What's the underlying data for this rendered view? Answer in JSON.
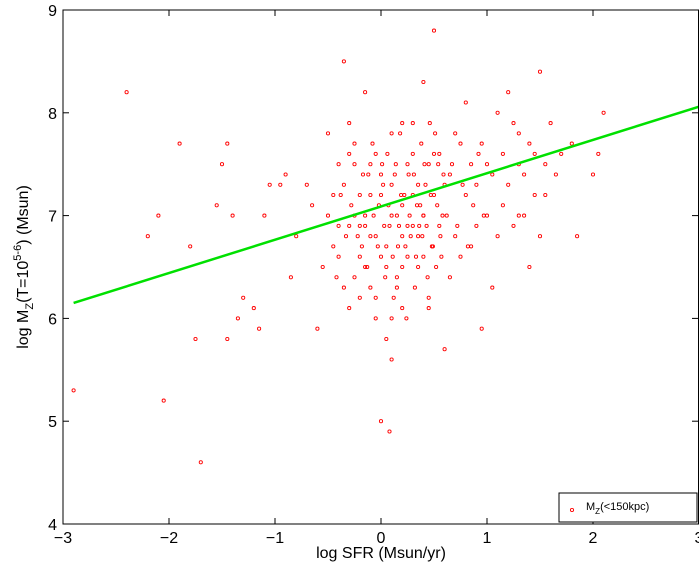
{
  "chart_data": {
    "type": "scatter",
    "title": "",
    "xlabel": "log SFR (Msun/yr)",
    "ylabel": "log M_Z(T=10^{5-6}) (Msun)",
    "xlim": [
      -3,
      3
    ],
    "ylim": [
      4,
      9
    ],
    "xticks": [
      -3,
      -2,
      -1,
      0,
      1,
      2,
      3
    ],
    "yticks": [
      4,
      5,
      6,
      7,
      8,
      9
    ],
    "xtick_labels": [
      "−3",
      "−2",
      "−1",
      "0",
      "1",
      "2",
      "3"
    ],
    "ytick_labels": [
      "4",
      "5",
      "6",
      "7",
      "8",
      "9"
    ],
    "grid": false,
    "legend_position": "bottom-right",
    "series": [
      {
        "name": "M_Z(<150kpc)",
        "color": "#ff0000",
        "marker": "open-circle",
        "points": [
          [
            -2.9,
            5.3
          ],
          [
            -2.4,
            8.2
          ],
          [
            -2.2,
            6.8
          ],
          [
            -2.1,
            7.0
          ],
          [
            -2.05,
            5.2
          ],
          [
            -1.9,
            7.7
          ],
          [
            -1.8,
            6.7
          ],
          [
            -1.75,
            5.8
          ],
          [
            -1.7,
            4.6
          ],
          [
            -1.55,
            7.1
          ],
          [
            -1.5,
            7.5
          ],
          [
            -1.45,
            5.8
          ],
          [
            -1.45,
            7.7
          ],
          [
            -1.4,
            7.0
          ],
          [
            -1.35,
            6.0
          ],
          [
            -1.3,
            6.2
          ],
          [
            -1.2,
            6.1
          ],
          [
            -1.15,
            5.9
          ],
          [
            -1.1,
            7.0
          ],
          [
            -1.05,
            7.3
          ],
          [
            -0.95,
            7.3
          ],
          [
            -0.9,
            7.4
          ],
          [
            -0.85,
            6.4
          ],
          [
            -0.8,
            6.8
          ],
          [
            -0.7,
            7.3
          ],
          [
            -0.65,
            7.1
          ],
          [
            -0.6,
            5.9
          ],
          [
            -0.55,
            6.5
          ],
          [
            -0.5,
            7.8
          ],
          [
            -0.45,
            7.2
          ],
          [
            -0.4,
            6.9
          ],
          [
            -0.35,
            8.5
          ],
          [
            -0.3,
            7.6
          ],
          [
            -0.25,
            7.0
          ],
          [
            -0.2,
            6.6
          ],
          [
            -0.15,
            8.2
          ],
          [
            -0.1,
            7.5
          ],
          [
            -0.05,
            6.2
          ],
          [
            0.0,
            5.0
          ],
          [
            0.05,
            5.8
          ],
          [
            0.08,
            4.9
          ],
          [
            0.1,
            5.6
          ],
          [
            0.15,
            6.3
          ],
          [
            0.2,
            7.9
          ],
          [
            0.25,
            6.9
          ],
          [
            0.3,
            7.2
          ],
          [
            0.35,
            6.5
          ],
          [
            0.4,
            8.3
          ],
          [
            0.45,
            6.1
          ],
          [
            0.5,
            8.8
          ],
          [
            0.55,
            7.6
          ],
          [
            0.6,
            5.7
          ],
          [
            0.65,
            7.4
          ],
          [
            0.7,
            6.8
          ],
          [
            0.75,
            7.7
          ],
          [
            0.8,
            8.1
          ],
          [
            0.85,
            6.7
          ],
          [
            0.9,
            7.3
          ],
          [
            0.95,
            5.9
          ],
          [
            1.0,
            7.5
          ],
          [
            1.05,
            6.3
          ],
          [
            1.1,
            8.0
          ],
          [
            1.15,
            7.1
          ],
          [
            1.2,
            8.2
          ],
          [
            1.25,
            6.9
          ],
          [
            1.3,
            7.8
          ],
          [
            1.35,
            7.4
          ],
          [
            1.4,
            6.5
          ],
          [
            1.45,
            7.6
          ],
          [
            1.5,
            8.4
          ],
          [
            1.55,
            7.2
          ],
          [
            1.6,
            7.9
          ],
          [
            1.65,
            7.4
          ],
          [
            1.7,
            7.6
          ],
          [
            1.8,
            7.7
          ],
          [
            1.85,
            6.8
          ],
          [
            2.0,
            7.4
          ],
          [
            2.05,
            7.6
          ],
          [
            2.1,
            8.0
          ],
          [
            1.3,
            7.0
          ],
          [
            -0.3,
            7.9
          ],
          [
            -0.25,
            6.4
          ],
          [
            -0.2,
            7.2
          ],
          [
            -0.18,
            6.7
          ],
          [
            -0.15,
            6.9
          ],
          [
            -0.12,
            7.4
          ],
          [
            -0.1,
            6.3
          ],
          [
            -0.08,
            7.7
          ],
          [
            -0.05,
            6.8
          ],
          [
            -0.02,
            7.1
          ],
          [
            0.0,
            6.6
          ],
          [
            0.02,
            7.3
          ],
          [
            0.04,
            6.4
          ],
          [
            0.06,
            7.6
          ],
          [
            0.08,
            6.9
          ],
          [
            0.1,
            7.0
          ],
          [
            0.12,
            6.2
          ],
          [
            0.14,
            7.5
          ],
          [
            0.16,
            6.7
          ],
          [
            0.18,
            7.8
          ],
          [
            0.2,
            6.5
          ],
          [
            0.22,
            7.2
          ],
          [
            0.24,
            6.0
          ],
          [
            0.26,
            7.4
          ],
          [
            0.28,
            6.8
          ],
          [
            0.3,
            7.6
          ],
          [
            0.32,
            6.3
          ],
          [
            0.34,
            7.1
          ],
          [
            0.36,
            6.9
          ],
          [
            0.38,
            7.7
          ],
          [
            0.4,
            6.6
          ],
          [
            0.42,
            7.3
          ],
          [
            0.44,
            6.4
          ],
          [
            0.46,
            7.9
          ],
          [
            0.48,
            6.7
          ],
          [
            0.5,
            7.2
          ],
          [
            0.52,
            6.5
          ],
          [
            0.54,
            7.5
          ],
          [
            0.56,
            6.8
          ],
          [
            0.58,
            7.0
          ],
          [
            -0.4,
            6.6
          ],
          [
            -0.35,
            7.3
          ],
          [
            -0.3,
            6.1
          ],
          [
            -0.25,
            7.7
          ],
          [
            -0.2,
            6.9
          ],
          [
            -0.15,
            6.5
          ],
          [
            -0.1,
            7.2
          ],
          [
            -0.05,
            6.0
          ],
          [
            0.0,
            7.4
          ],
          [
            0.05,
            6.7
          ],
          [
            0.1,
            7.8
          ],
          [
            0.15,
            6.4
          ],
          [
            0.2,
            7.1
          ],
          [
            0.25,
            6.6
          ],
          [
            0.3,
            7.9
          ],
          [
            0.35,
            6.8
          ],
          [
            0.4,
            7.0
          ],
          [
            0.45,
            6.2
          ],
          [
            0.5,
            7.6
          ],
          [
            0.55,
            6.9
          ],
          [
            0.6,
            7.3
          ],
          [
            0.65,
            6.4
          ],
          [
            0.7,
            7.8
          ],
          [
            0.75,
            6.6
          ],
          [
            0.8,
            7.2
          ],
          [
            0.85,
            7.5
          ],
          [
            0.9,
            6.9
          ],
          [
            0.95,
            7.7
          ],
          [
            1.0,
            7.0
          ],
          [
            1.05,
            7.4
          ],
          [
            1.1,
            6.8
          ],
          [
            1.15,
            7.6
          ],
          [
            1.2,
            7.3
          ],
          [
            1.25,
            7.9
          ],
          [
            1.3,
            7.5
          ],
          [
            1.35,
            7.0
          ],
          [
            1.4,
            7.7
          ],
          [
            1.45,
            7.2
          ],
          [
            1.5,
            6.8
          ],
          [
            1.55,
            7.5
          ],
          [
            -0.5,
            7.0
          ],
          [
            -0.45,
            6.7
          ],
          [
            -0.4,
            7.5
          ],
          [
            -0.35,
            6.3
          ],
          [
            -0.3,
            6.9
          ],
          [
            -0.25,
            7.5
          ],
          [
            -0.2,
            6.2
          ],
          [
            -0.15,
            7.0
          ],
          [
            -0.1,
            6.8
          ],
          [
            -0.05,
            7.6
          ],
          [
            0.0,
            7.2
          ],
          [
            0.05,
            6.5
          ],
          [
            0.1,
            7.3
          ],
          [
            0.15,
            7.0
          ],
          [
            0.2,
            6.8
          ],
          [
            0.25,
            7.5
          ],
          [
            0.3,
            6.9
          ],
          [
            0.35,
            7.3
          ],
          [
            0.4,
            7.0
          ],
          [
            0.45,
            7.5
          ],
          [
            0.03,
            6.9
          ],
          [
            0.07,
            7.1
          ],
          [
            0.11,
            6.6
          ],
          [
            0.13,
            7.4
          ],
          [
            0.17,
            6.9
          ],
          [
            0.19,
            7.2
          ],
          [
            0.23,
            6.7
          ],
          [
            0.27,
            7.0
          ],
          [
            0.31,
            7.4
          ],
          [
            0.33,
            6.6
          ],
          [
            0.37,
            7.1
          ],
          [
            0.39,
            6.8
          ],
          [
            0.41,
            7.5
          ],
          [
            0.43,
            6.9
          ],
          [
            0.47,
            7.2
          ],
          [
            0.49,
            6.7
          ],
          [
            0.51,
            7.8
          ],
          [
            0.53,
            7.1
          ],
          [
            0.57,
            6.6
          ],
          [
            0.59,
            7.4
          ],
          [
            -0.28,
            7.1
          ],
          [
            -0.22,
            6.8
          ],
          [
            -0.17,
            7.4
          ],
          [
            -0.13,
            6.5
          ],
          [
            -0.07,
            7.0
          ],
          [
            -0.03,
            6.7
          ],
          [
            0.01,
            7.5
          ],
          [
            -0.33,
            6.8
          ],
          [
            -0.38,
            7.2
          ],
          [
            -0.42,
            6.4
          ],
          [
            0.62,
            7.0
          ],
          [
            0.67,
            7.5
          ],
          [
            0.72,
            6.9
          ],
          [
            0.77,
            7.3
          ],
          [
            0.82,
            6.7
          ],
          [
            0.87,
            7.1
          ],
          [
            0.92,
            7.6
          ],
          [
            0.97,
            7.0
          ],
          [
            0.2,
            6.1
          ],
          [
            0.1,
            6.0
          ]
        ]
      }
    ],
    "fit_line": {
      "color": "#00e000",
      "x": [
        -2.9,
        3.0
      ],
      "y": [
        6.15,
        8.06
      ]
    }
  }
}
